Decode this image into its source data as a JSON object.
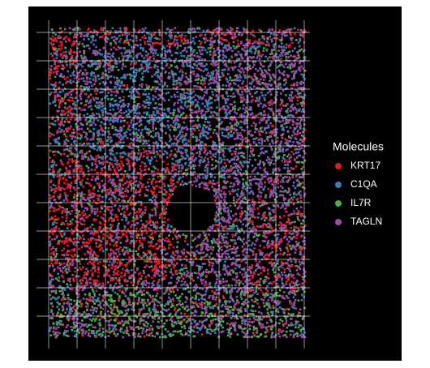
{
  "chart_data": {
    "type": "scatter",
    "legend_title": "Molecules",
    "series": [
      {
        "name": "KRT17",
        "color": "#e41a1c"
      },
      {
        "name": "C1QA",
        "color": "#377eb8"
      },
      {
        "name": "IL7R",
        "color": "#4daf4a"
      },
      {
        "name": "TAGLN",
        "color": "#984ea3"
      }
    ],
    "grid": true,
    "background": "#000000"
  }
}
